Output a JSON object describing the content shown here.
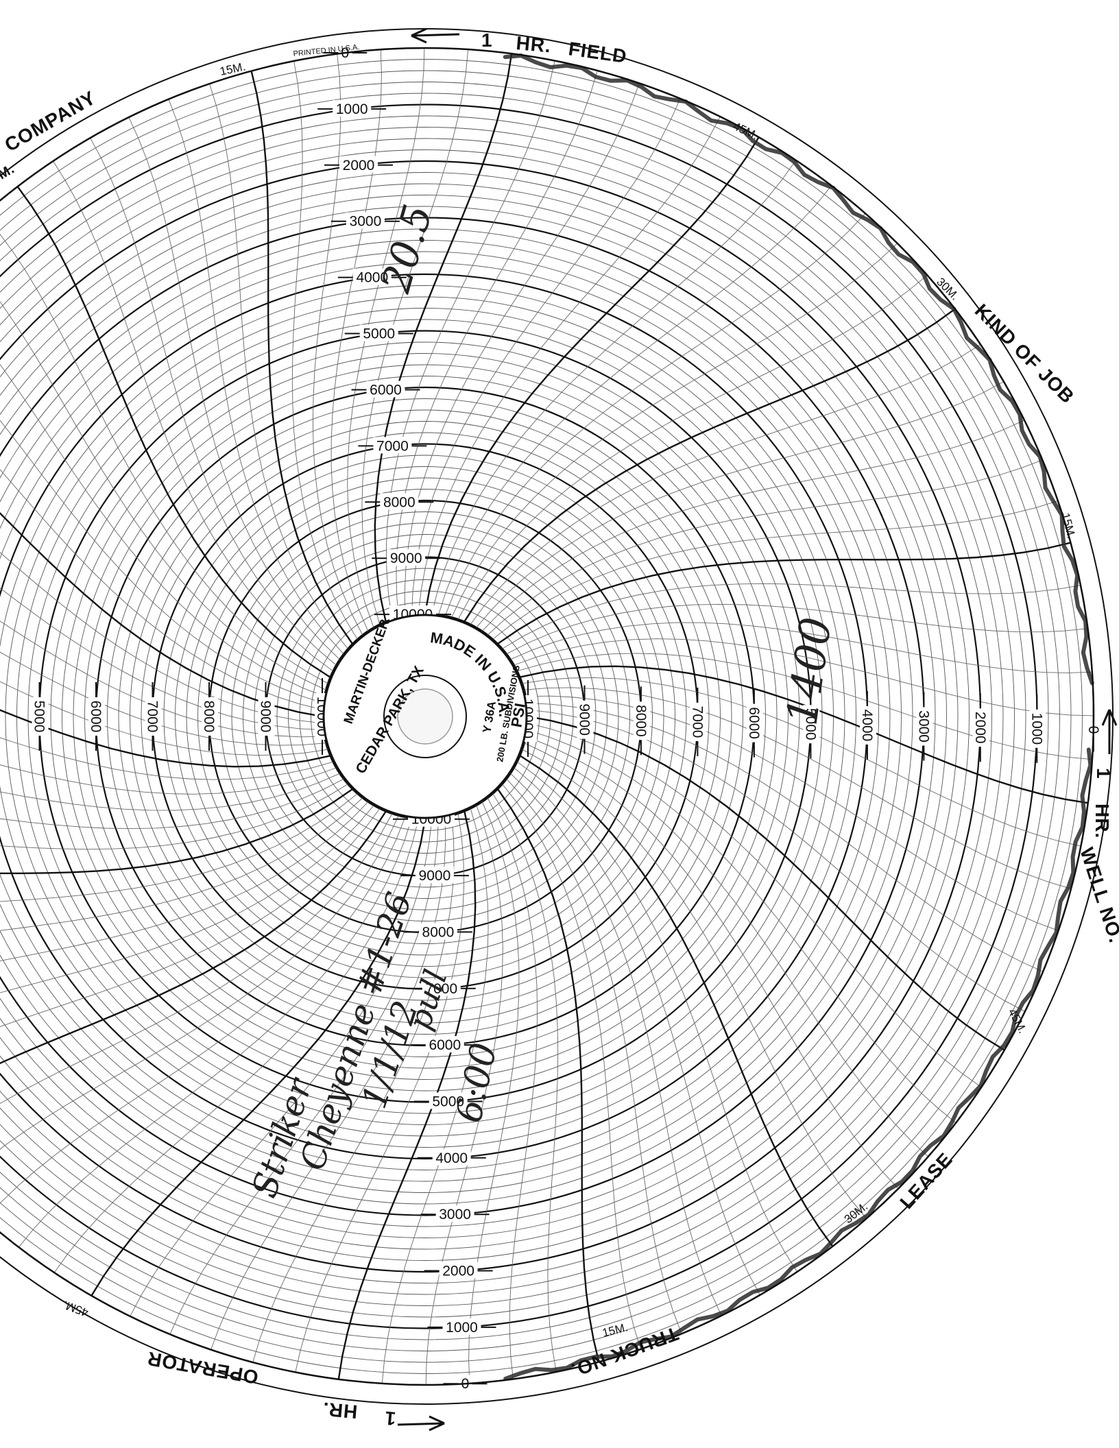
{
  "printed_note": "PRINTED IN U.S.A.",
  "hub": {
    "brand": "MARTIN-DECKER",
    "location": "CEDAR PARK, TX",
    "made_in": "MADE IN U.S.A.",
    "model": "Y 36A",
    "subdivisions": "200 LB. SUBDIVISIONS",
    "unit": "PSI"
  },
  "field_labels": {
    "hr_top": "HR.",
    "field": "FIELD",
    "company": "COMPANY",
    "kind_of_job": "KIND OF JOB",
    "hr_right": "HR.",
    "well_no": "WELL NO.",
    "lease": "LEASE",
    "truck_no": "TRUCK NO.",
    "operator": "OPERATOR",
    "hr_bottom": "HR.",
    "m_fragment": "M."
  },
  "hour_marks": {
    "one_a": "1",
    "one_b": "1",
    "one_c": "1"
  },
  "time_marks": {
    "t15_top": "15M.",
    "t45_top": "45M.",
    "t30_right": "30M.",
    "t15_right": "15M.",
    "t45_right": "45M.",
    "t30_bottom": "30M.",
    "t15_bottom": "15M.",
    "t45_left": "45M."
  },
  "pressure_scale": {
    "values": [
      "0",
      "1000",
      "2000",
      "3000",
      "4000",
      "5000",
      "6000",
      "7000",
      "8000",
      "9000",
      "10000"
    ]
  },
  "handwriting": {
    "top_note": "20.5",
    "right_note": "1400",
    "lower_line1": "Striker",
    "lower_line2": "Cheyenne #1-26",
    "lower_line3": "1/1/12",
    "lower_line4": "6:00",
    "lower_line5": "pull"
  }
}
